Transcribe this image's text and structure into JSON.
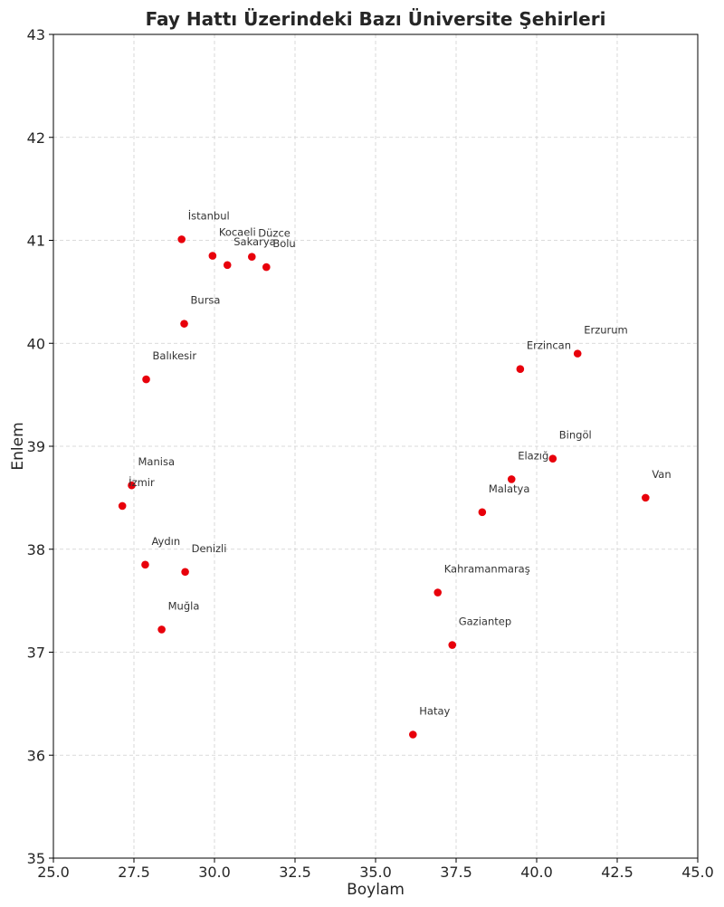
{
  "chart_data": {
    "type": "scatter",
    "title": "Fay Hattı Üzerindeki Bazı Üniversite Şehirleri",
    "xlabel": "Boylam",
    "ylabel": "Enlem",
    "xlim": [
      25.0,
      45.0
    ],
    "ylim": [
      35,
      43
    ],
    "xticks": [
      25.0,
      27.5,
      30.0,
      32.5,
      35.0,
      37.5,
      40.0,
      42.5,
      45.0
    ],
    "xtick_labels": [
      "25.0",
      "27.5",
      "30.0",
      "32.5",
      "35.0",
      "37.5",
      "40.0",
      "42.5",
      "45.0"
    ],
    "yticks": [
      35,
      36,
      37,
      38,
      39,
      40,
      41,
      42,
      43
    ],
    "ytick_labels": [
      "35",
      "36",
      "37",
      "38",
      "39",
      "40",
      "41",
      "42",
      "43"
    ],
    "grid": true,
    "marker_color": "#e8000b",
    "points": [
      {
        "name": "İstanbul",
        "x": 28.98,
        "y": 41.01
      },
      {
        "name": "Kocaeli",
        "x": 29.94,
        "y": 40.85
      },
      {
        "name": "Sakarya",
        "x": 30.4,
        "y": 40.76
      },
      {
        "name": "Düzce",
        "x": 31.16,
        "y": 40.84
      },
      {
        "name": "Bolu",
        "x": 31.61,
        "y": 40.74
      },
      {
        "name": "Bursa",
        "x": 29.06,
        "y": 40.19
      },
      {
        "name": "Balıkesir",
        "x": 27.88,
        "y": 39.65
      },
      {
        "name": "Manisa",
        "x": 27.43,
        "y": 38.62
      },
      {
        "name": "İzmir",
        "x": 27.14,
        "y": 38.42
      },
      {
        "name": "Aydın",
        "x": 27.85,
        "y": 37.85
      },
      {
        "name": "Denizli",
        "x": 29.09,
        "y": 37.78
      },
      {
        "name": "Muğla",
        "x": 28.36,
        "y": 37.22
      },
      {
        "name": "Erzurum",
        "x": 41.27,
        "y": 39.9
      },
      {
        "name": "Erzincan",
        "x": 39.49,
        "y": 39.75
      },
      {
        "name": "Bingöl",
        "x": 40.5,
        "y": 38.88
      },
      {
        "name": "Elazığ",
        "x": 39.22,
        "y": 38.68
      },
      {
        "name": "Malatya",
        "x": 38.31,
        "y": 38.36
      },
      {
        "name": "Van",
        "x": 43.38,
        "y": 38.5
      },
      {
        "name": "Kahramanmaraş",
        "x": 36.93,
        "y": 37.58
      },
      {
        "name": "Gaziantep",
        "x": 37.38,
        "y": 37.07
      },
      {
        "name": "Hatay",
        "x": 36.16,
        "y": 36.2
      }
    ]
  }
}
